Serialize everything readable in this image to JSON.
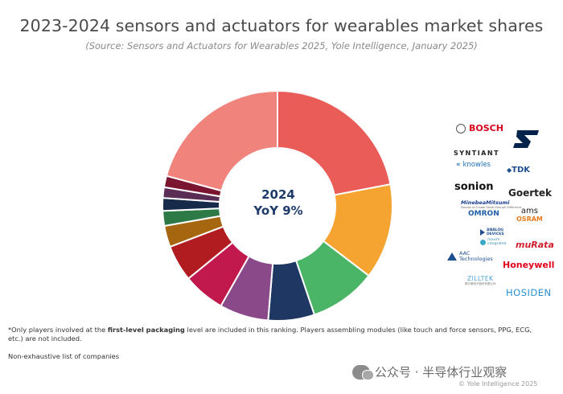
{
  "header": {
    "title": "2023-2024 sensors and actuators for wearables market shares",
    "subtitle": "(Source: Sensors and Actuators for Wearables 2025, Yole Intelligence, January 2025)"
  },
  "center": {
    "year": "2024",
    "yoy": "YoY 9%"
  },
  "chart_data": {
    "type": "donut",
    "title": "2023-2024 sensors and actuators for wearables market shares",
    "center_label": "2024 YoY 9%",
    "slices": [
      {
        "value": 22.0,
        "color": "#ea5c58"
      },
      {
        "value": 13.4,
        "color": "#f5a431"
      },
      {
        "value": 9.4,
        "color": "#4ab566"
      },
      {
        "value": 6.5,
        "color": "#1f3763"
      },
      {
        "value": 6.9,
        "color": "#8a4a8a"
      },
      {
        "value": 5.9,
        "color": "#c1184e"
      },
      {
        "value": 5.1,
        "color": "#b01c1f"
      },
      {
        "value": 3.0,
        "color": "#a6660f"
      },
      {
        "value": 2.1,
        "color": "#2d7a46"
      },
      {
        "value": 1.8,
        "color": "#172a4a"
      },
      {
        "value": 1.5,
        "color": "#5a2d54"
      },
      {
        "value": 1.6,
        "color": "#7a1430"
      },
      {
        "value": 20.8,
        "color": "#f0837b"
      }
    ]
  },
  "logos": {
    "bosch": "BOSCH",
    "st": "ST",
    "syntiant": "SYNTIANT",
    "knowles": "knowles",
    "tdk": "TDK",
    "sonion": "sonion",
    "goertek": "Goertek",
    "minebea": "MinebeaMitsumi",
    "minebea_tag": "Passion to Create Value through Difference",
    "omron": "OMRON",
    "ams": "ams",
    "osram": "OSRAM",
    "adi_1": "ANALOG",
    "adi_2": "DEVICES",
    "maxim_1": "maxim",
    "maxim_2": "integrated",
    "murata": "muRata",
    "aac_1": "AAC",
    "aac_2": "Technologies",
    "honeywell": "Honeywell",
    "zilltek": "ZILLTEK",
    "zilltek_sub": "歌尔微电子股份有限公司",
    "hosiden": "HOSIDEN"
  },
  "footer": {
    "note_pre": "*Only players involved at the ",
    "note_bold": "first-level packaging",
    "note_post": " level are included in this ranking. Players assembling modules (like touch and force sensors, PPG, ECG, etc.) are not included.",
    "nonexhaustive": "Non-exhaustive list of companies",
    "wechat": "公众号 · 半导体行业观察",
    "copyright": "© Yole Intelligence 2025"
  }
}
